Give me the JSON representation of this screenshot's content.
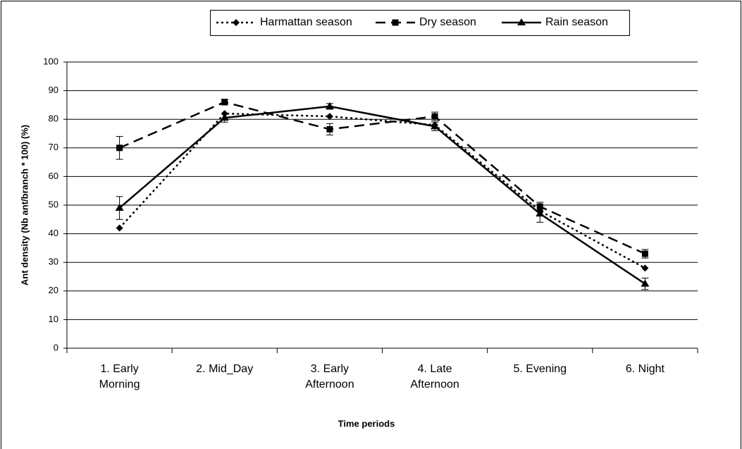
{
  "chart_data": {
    "type": "line",
    "x_label": "Time periods",
    "y_label": "Ant density (Nb ant/branch * 100) (%)",
    "categories": [
      "1. Early Morning",
      "2. Mid_Day",
      "3. Early Afternoon",
      "4. Late Afternoon",
      "5. Evening",
      "6. Night"
    ],
    "series": [
      {
        "name": "Harmattan season",
        "color": "#000000",
        "dash": "3,4",
        "marker": "diamond",
        "values": [
          42,
          82,
          81,
          78,
          48,
          28
        ]
      },
      {
        "name": "Dry season",
        "color": "#000000",
        "dash": "14,8",
        "marker": "square",
        "values": [
          70,
          86,
          76.5,
          81,
          49.5,
          33
        ],
        "errors": [
          4,
          1,
          2,
          1.5,
          1.5,
          1.5
        ]
      },
      {
        "name": "Rain season",
        "color": "#000000",
        "dash": "none",
        "marker": "triangle",
        "values": [
          49,
          80.5,
          84.5,
          77.5,
          47,
          22.5
        ],
        "errors": [
          4,
          1.5,
          1,
          1.5,
          3,
          2
        ]
      }
    ],
    "ylim": [
      0,
      100
    ],
    "yticks": [
      0,
      10,
      20,
      30,
      40,
      50,
      60,
      70,
      80,
      90,
      100
    ],
    "grid": true
  }
}
